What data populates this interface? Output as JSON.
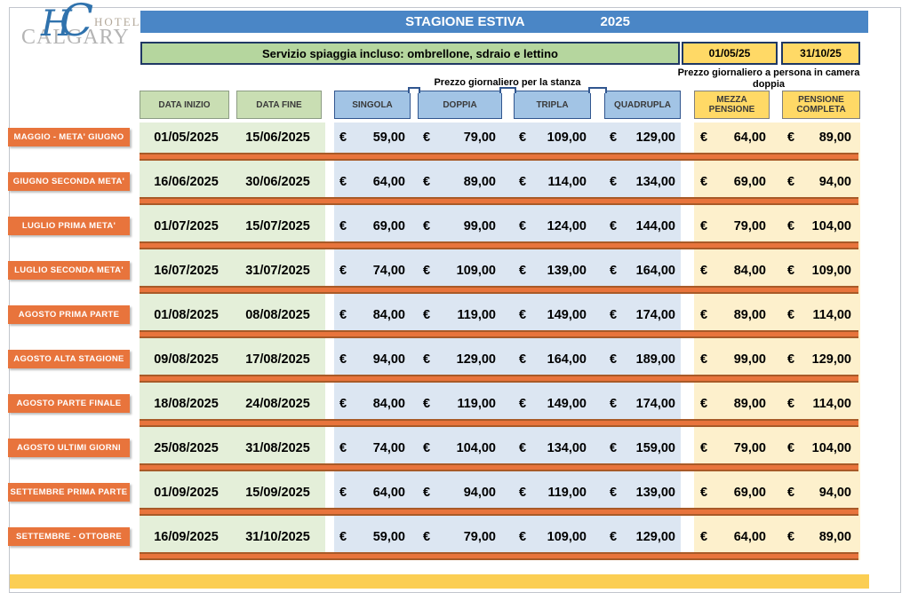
{
  "logo": {
    "monogram_left": "H",
    "monogram_right": "C",
    "hotel_word": "HOTEL",
    "name_word": "CALGARY"
  },
  "title_bar": {
    "title": "STAGIONE ESTIVA",
    "year": "2025"
  },
  "banner": {
    "service_text": "Servizio spiaggia incluso: ombrellone, sdraio e lettino",
    "season_start": "01/05/25",
    "season_end": "31/10/25"
  },
  "group_labels": {
    "room": "Prezzo giornaliero per la stanza",
    "person": "Prezzo giornaliero a persona in camera doppia"
  },
  "column_headers": {
    "data_inizio": "DATA INIZIO",
    "data_fine": "DATA FINE",
    "singola": "SINGOLA",
    "doppia": "DOPPIA",
    "tripla": "TRIPLA",
    "quadrupla": "QUADRUPLA",
    "mezza_pensione": "MEZZA PENSIONE",
    "pensione_completa": "PENSIONE COMPLETA"
  },
  "currency": "€",
  "rows": [
    {
      "label": "MAGGIO -  META' GIUGNO",
      "date_start": "01/05/2025",
      "date_end": "15/06/2025",
      "singola": "59,00",
      "doppia": "79,00",
      "tripla": "109,00",
      "quadrupla": "129,00",
      "mezza_pensione": "64,00",
      "pensione_completa": "89,00"
    },
    {
      "label": "GIUGNO SECONDA META'",
      "date_start": "16/06/2025",
      "date_end": "30/06/2025",
      "singola": "64,00",
      "doppia": "89,00",
      "tripla": "114,00",
      "quadrupla": "134,00",
      "mezza_pensione": "69,00",
      "pensione_completa": "94,00"
    },
    {
      "label": "LUGLIO PRIMA META'",
      "date_start": "01/07/2025",
      "date_end": "15/07/2025",
      "singola": "69,00",
      "doppia": "99,00",
      "tripla": "124,00",
      "quadrupla": "144,00",
      "mezza_pensione": "79,00",
      "pensione_completa": "104,00"
    },
    {
      "label": "LUGLIO SECONDA META'",
      "date_start": "16/07/2025",
      "date_end": "31/07/2025",
      "singola": "74,00",
      "doppia": "109,00",
      "tripla": "139,00",
      "quadrupla": "164,00",
      "mezza_pensione": "84,00",
      "pensione_completa": "109,00"
    },
    {
      "label": "AGOSTO PRIMA PARTE",
      "date_start": "01/08/2025",
      "date_end": "08/08/2025",
      "singola": "84,00",
      "doppia": "119,00",
      "tripla": "149,00",
      "quadrupla": "174,00",
      "mezza_pensione": "89,00",
      "pensione_completa": "114,00"
    },
    {
      "label": "AGOSTO ALTA STAGIONE",
      "date_start": "09/08/2025",
      "date_end": "17/08/2025",
      "singola": "94,00",
      "doppia": "129,00",
      "tripla": "164,00",
      "quadrupla": "189,00",
      "mezza_pensione": "99,00",
      "pensione_completa": "129,00"
    },
    {
      "label": "AGOSTO PARTE FINALE",
      "date_start": "18/08/2025",
      "date_end": "24/08/2025",
      "singola": "84,00",
      "doppia": "119,00",
      "tripla": "149,00",
      "quadrupla": "174,00",
      "mezza_pensione": "89,00",
      "pensione_completa": "114,00"
    },
    {
      "label": "AGOSTO ULTIMI GIORNI",
      "date_start": "25/08/2025",
      "date_end": "31/08/2025",
      "singola": "74,00",
      "doppia": "104,00",
      "tripla": "134,00",
      "quadrupla": "159,00",
      "mezza_pensione": "79,00",
      "pensione_completa": "104,00"
    },
    {
      "label": "SETTEMBRE PRIMA PARTE",
      "date_start": "01/09/2025",
      "date_end": "15/09/2025",
      "singola": "64,00",
      "doppia": "94,00",
      "tripla": "119,00",
      "quadrupla": "139,00",
      "mezza_pensione": "69,00",
      "pensione_completa": "94,00"
    },
    {
      "label": "SETTEMBRE - OTTOBRE",
      "date_start": "16/09/2025",
      "date_end": "31/10/2025",
      "singola": "59,00",
      "doppia": "79,00",
      "tripla": "109,00",
      "quadrupla": "129,00",
      "mezza_pensione": "64,00",
      "pensione_completa": "89,00"
    }
  ],
  "colors": {
    "title_blue": "#4a86c6",
    "banner_green": "#b5d69e",
    "accent_yellow": "#ffd966",
    "header_blue": "#a2c4e5",
    "band_green": "#e4efd9",
    "band_blue": "#dce6f2",
    "band_yellow": "#fdf0cc",
    "orange": "#e8743c",
    "gold_bar": "#fbce53",
    "navy_border": "#1f3864"
  }
}
